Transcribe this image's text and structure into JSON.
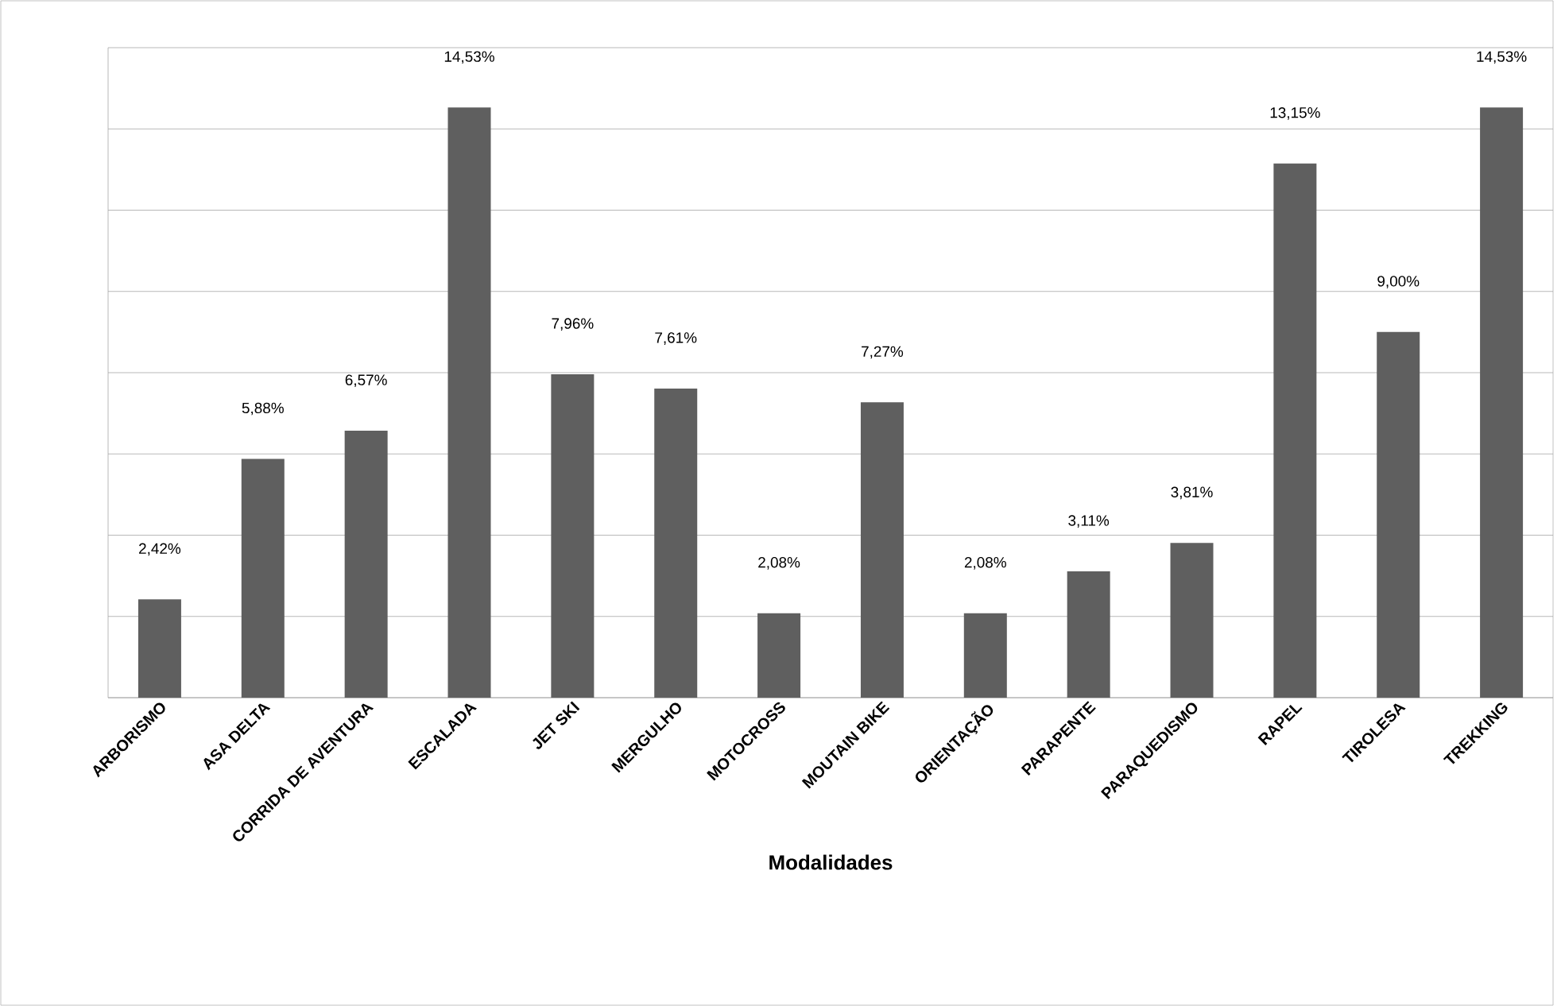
{
  "chart_data": {
    "type": "bar",
    "xlabel": "**Modalidades**",
    "categories": [
      "ARBORISMO",
      "ASA DELTA",
      "CORRIDA DE AVENTURA",
      "ESCALADA",
      "JET SKI",
      "MERGULHO",
      "MOTOCROSS",
      "MOUTAIN BIKE",
      "ORIENTAÇÃO",
      "PARAPENTE",
      "PARAQUEDISMO",
      "RAPEL",
      "TIROLESA",
      "TREKKING"
    ],
    "values": [
      2.42,
      5.88,
      6.57,
      14.53,
      7.96,
      7.61,
      2.08,
      7.27,
      2.08,
      3.11,
      3.81,
      13.15,
      9.0,
      14.53
    ],
    "value_labels": [
      "2,42%",
      "5,88%",
      "6,57%",
      "14,53%",
      "7,96%",
      "7,61%",
      "2,08%",
      "7,27%",
      "2,08%",
      "3,11%",
      "3,81%",
      "13,15%",
      "9,00%",
      "14,53%"
    ],
    "color": "#5f5f5f",
    "ylim": [
      0,
      16
    ],
    "yticks": [
      {
        "value": 0,
        "label": null
      },
      {
        "value": 2,
        "label": null
      },
      {
        "value": 4,
        "label": null
      },
      {
        "value": 6,
        "label": null
      },
      {
        "value": 8,
        "label": null
      },
      {
        "value": 10,
        "label": null
      },
      {
        "value": 12,
        "label": null
      },
      {
        "value": 14,
        "label": null
      },
      {
        "value": 16,
        "label": null
      }
    ],
    "tick_labels": "x",
    "grid": "y"
  }
}
